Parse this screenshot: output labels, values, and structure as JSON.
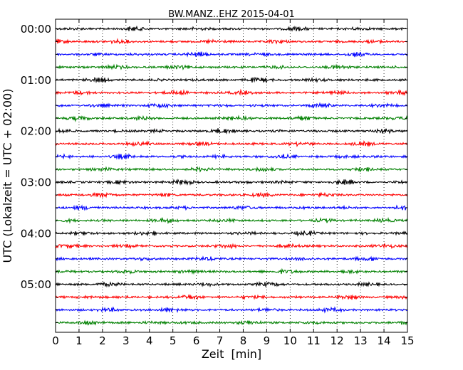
{
  "chart_data": {
    "type": "line",
    "title": "BW.MANZ..EHZ 2015-04-01",
    "xlabel": "Zeit  [min]",
    "ylabel": "UTC (Lokalzeit = UTC + 02:00)",
    "xlim": [
      0,
      15
    ],
    "x_ticks": [
      "0",
      "1",
      "2",
      "3",
      "4",
      "5",
      "6",
      "7",
      "8",
      "9",
      "10",
      "11",
      "12",
      "13",
      "14",
      "15"
    ],
    "y_ticks": [
      "00:00",
      "01:00",
      "02:00",
      "03:00",
      "04:00",
      "05:00"
    ],
    "hours_shown": 6,
    "traces_per_hour": 4,
    "trace_minutes": 15,
    "grid": "vertical dotted",
    "trace_colors": [
      "#000000",
      "#ff0000",
      "#0000ff",
      "#008000"
    ]
  }
}
